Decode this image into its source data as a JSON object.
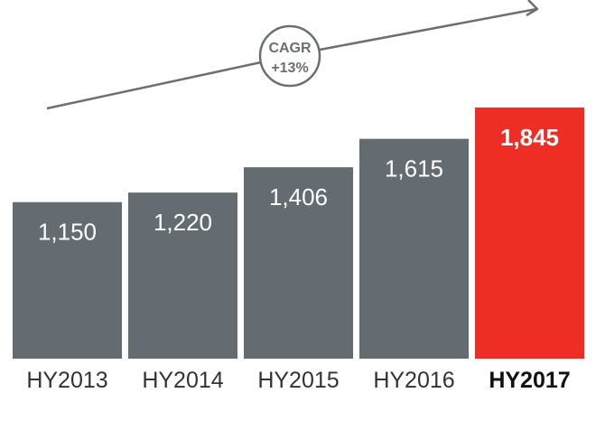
{
  "chart_data": {
    "type": "bar",
    "categories": [
      "HY2013",
      "HY2014",
      "HY2015",
      "HY2016",
      "HY2017"
    ],
    "values": [
      1150,
      1220,
      1406,
      1615,
      1845
    ],
    "value_labels": [
      "1,150",
      "1,220",
      "1,406",
      "1,615",
      "1,845"
    ],
    "highlight_index": 4,
    "title": "",
    "xlabel": "",
    "ylabel": "",
    "colors": {
      "bar": "#646c72",
      "highlight": "#ee2d24"
    },
    "annotation": {
      "line1": "CAGR",
      "line2": "+13%",
      "color": "#6b6f74"
    }
  }
}
